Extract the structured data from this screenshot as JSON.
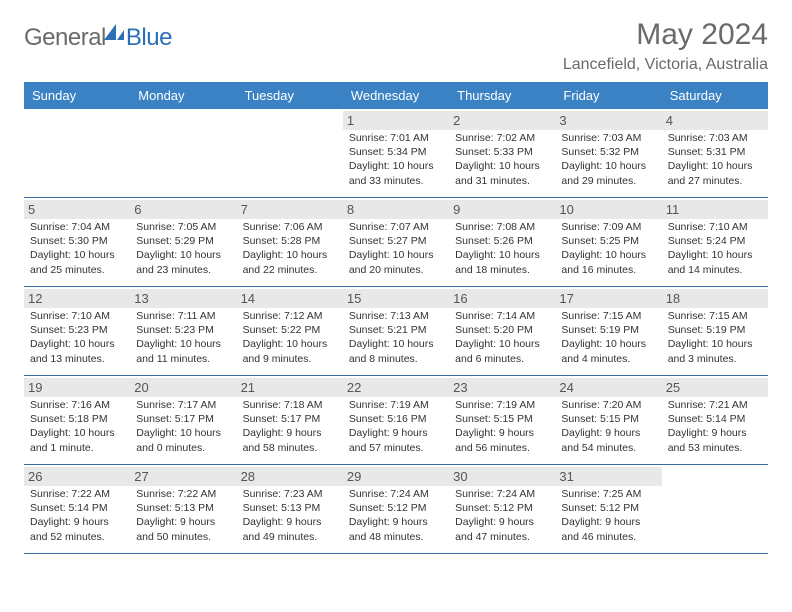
{
  "brand": {
    "text1": "General",
    "text2": "Blue"
  },
  "title": "May 2024",
  "location": "Lancefield, Victoria, Australia",
  "colors": {
    "header_bar": "#3b82c4",
    "header_text": "#ffffff",
    "daynum_bg": "#e8e8e8",
    "week_divider": "#3b6a9e",
    "logo_general": "#6a6a6a",
    "logo_blue": "#2d6fb5",
    "body_text": "#333333"
  },
  "day_names": [
    "Sunday",
    "Monday",
    "Tuesday",
    "Wednesday",
    "Thursday",
    "Friday",
    "Saturday"
  ],
  "weeks": [
    [
      null,
      null,
      null,
      {
        "n": "1",
        "sunrise": "7:01 AM",
        "sunset": "5:34 PM",
        "daylight": "10 hours and 33 minutes."
      },
      {
        "n": "2",
        "sunrise": "7:02 AM",
        "sunset": "5:33 PM",
        "daylight": "10 hours and 31 minutes."
      },
      {
        "n": "3",
        "sunrise": "7:03 AM",
        "sunset": "5:32 PM",
        "daylight": "10 hours and 29 minutes."
      },
      {
        "n": "4",
        "sunrise": "7:03 AM",
        "sunset": "5:31 PM",
        "daylight": "10 hours and 27 minutes."
      }
    ],
    [
      {
        "n": "5",
        "sunrise": "7:04 AM",
        "sunset": "5:30 PM",
        "daylight": "10 hours and 25 minutes."
      },
      {
        "n": "6",
        "sunrise": "7:05 AM",
        "sunset": "5:29 PM",
        "daylight": "10 hours and 23 minutes."
      },
      {
        "n": "7",
        "sunrise": "7:06 AM",
        "sunset": "5:28 PM",
        "daylight": "10 hours and 22 minutes."
      },
      {
        "n": "8",
        "sunrise": "7:07 AM",
        "sunset": "5:27 PM",
        "daylight": "10 hours and 20 minutes."
      },
      {
        "n": "9",
        "sunrise": "7:08 AM",
        "sunset": "5:26 PM",
        "daylight": "10 hours and 18 minutes."
      },
      {
        "n": "10",
        "sunrise": "7:09 AM",
        "sunset": "5:25 PM",
        "daylight": "10 hours and 16 minutes."
      },
      {
        "n": "11",
        "sunrise": "7:10 AM",
        "sunset": "5:24 PM",
        "daylight": "10 hours and 14 minutes."
      }
    ],
    [
      {
        "n": "12",
        "sunrise": "7:10 AM",
        "sunset": "5:23 PM",
        "daylight": "10 hours and 13 minutes."
      },
      {
        "n": "13",
        "sunrise": "7:11 AM",
        "sunset": "5:23 PM",
        "daylight": "10 hours and 11 minutes."
      },
      {
        "n": "14",
        "sunrise": "7:12 AM",
        "sunset": "5:22 PM",
        "daylight": "10 hours and 9 minutes."
      },
      {
        "n": "15",
        "sunrise": "7:13 AM",
        "sunset": "5:21 PM",
        "daylight": "10 hours and 8 minutes."
      },
      {
        "n": "16",
        "sunrise": "7:14 AM",
        "sunset": "5:20 PM",
        "daylight": "10 hours and 6 minutes."
      },
      {
        "n": "17",
        "sunrise": "7:15 AM",
        "sunset": "5:19 PM",
        "daylight": "10 hours and 4 minutes."
      },
      {
        "n": "18",
        "sunrise": "7:15 AM",
        "sunset": "5:19 PM",
        "daylight": "10 hours and 3 minutes."
      }
    ],
    [
      {
        "n": "19",
        "sunrise": "7:16 AM",
        "sunset": "5:18 PM",
        "daylight": "10 hours and 1 minute."
      },
      {
        "n": "20",
        "sunrise": "7:17 AM",
        "sunset": "5:17 PM",
        "daylight": "10 hours and 0 minutes."
      },
      {
        "n": "21",
        "sunrise": "7:18 AM",
        "sunset": "5:17 PM",
        "daylight": "9 hours and 58 minutes."
      },
      {
        "n": "22",
        "sunrise": "7:19 AM",
        "sunset": "5:16 PM",
        "daylight": "9 hours and 57 minutes."
      },
      {
        "n": "23",
        "sunrise": "7:19 AM",
        "sunset": "5:15 PM",
        "daylight": "9 hours and 56 minutes."
      },
      {
        "n": "24",
        "sunrise": "7:20 AM",
        "sunset": "5:15 PM",
        "daylight": "9 hours and 54 minutes."
      },
      {
        "n": "25",
        "sunrise": "7:21 AM",
        "sunset": "5:14 PM",
        "daylight": "9 hours and 53 minutes."
      }
    ],
    [
      {
        "n": "26",
        "sunrise": "7:22 AM",
        "sunset": "5:14 PM",
        "daylight": "9 hours and 52 minutes."
      },
      {
        "n": "27",
        "sunrise": "7:22 AM",
        "sunset": "5:13 PM",
        "daylight": "9 hours and 50 minutes."
      },
      {
        "n": "28",
        "sunrise": "7:23 AM",
        "sunset": "5:13 PM",
        "daylight": "9 hours and 49 minutes."
      },
      {
        "n": "29",
        "sunrise": "7:24 AM",
        "sunset": "5:12 PM",
        "daylight": "9 hours and 48 minutes."
      },
      {
        "n": "30",
        "sunrise": "7:24 AM",
        "sunset": "5:12 PM",
        "daylight": "9 hours and 47 minutes."
      },
      {
        "n": "31",
        "sunrise": "7:25 AM",
        "sunset": "5:12 PM",
        "daylight": "9 hours and 46 minutes."
      },
      null
    ]
  ],
  "labels": {
    "sunrise": "Sunrise: ",
    "sunset": "Sunset: ",
    "daylight": "Daylight: "
  }
}
